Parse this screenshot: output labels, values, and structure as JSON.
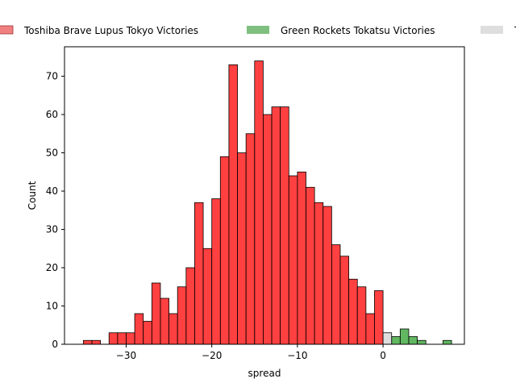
{
  "chart_data": {
    "type": "bar",
    "subtype": "histogram",
    "xlabel": "spread",
    "ylabel": "Count",
    "xlim": [
      -37.2,
      9.5
    ],
    "ylim": [
      0,
      77.7
    ],
    "xticks": [
      -30,
      -20,
      -10,
      0
    ],
    "xtick_labels": [
      "−30",
      "−20",
      "−10",
      "0"
    ],
    "yticks": [
      0,
      10,
      20,
      30,
      40,
      50,
      60,
      70
    ],
    "ytick_labels": [
      "0",
      "10",
      "20",
      "30",
      "40",
      "50",
      "60",
      "70"
    ],
    "legend_position": "top-center",
    "bin_width": 1,
    "series": [
      {
        "name": "Toshiba Brave Lupus Tokyo Victories",
        "color": "#ff0000",
        "legend_color": "#f08080",
        "bins": [
          {
            "x0": -35,
            "x1": -34,
            "count": 1
          },
          {
            "x0": -34,
            "x1": -33,
            "count": 1
          },
          {
            "x0": -32,
            "x1": -31,
            "count": 3
          },
          {
            "x0": -31,
            "x1": -30,
            "count": 3
          },
          {
            "x0": -30,
            "x1": -29,
            "count": 3
          },
          {
            "x0": -29,
            "x1": -28,
            "count": 8
          },
          {
            "x0": -28,
            "x1": -27,
            "count": 6
          },
          {
            "x0": -27,
            "x1": -26,
            "count": 16
          },
          {
            "x0": -26,
            "x1": -25,
            "count": 12
          },
          {
            "x0": -25,
            "x1": -24,
            "count": 8
          },
          {
            "x0": -24,
            "x1": -23,
            "count": 15
          },
          {
            "x0": -23,
            "x1": -22,
            "count": 20
          },
          {
            "x0": -22,
            "x1": -21,
            "count": 37
          },
          {
            "x0": -21,
            "x1": -20,
            "count": 25
          },
          {
            "x0": -20,
            "x1": -19,
            "count": 38
          },
          {
            "x0": -19,
            "x1": -18,
            "count": 49
          },
          {
            "x0": -18,
            "x1": -17,
            "count": 73
          },
          {
            "x0": -17,
            "x1": -16,
            "count": 50
          },
          {
            "x0": -16,
            "x1": -15,
            "count": 55
          },
          {
            "x0": -15,
            "x1": -14,
            "count": 74
          },
          {
            "x0": -14,
            "x1": -13,
            "count": 60
          },
          {
            "x0": -13,
            "x1": -12,
            "count": 62
          },
          {
            "x0": -12,
            "x1": -11,
            "count": 62
          },
          {
            "x0": -11,
            "x1": -10,
            "count": 44
          },
          {
            "x0": -10,
            "x1": -9,
            "count": 45
          },
          {
            "x0": -9,
            "x1": -8,
            "count": 41
          },
          {
            "x0": -8,
            "x1": -7,
            "count": 37
          },
          {
            "x0": -7,
            "x1": -6,
            "count": 36
          },
          {
            "x0": -6,
            "x1": -5,
            "count": 26
          },
          {
            "x0": -5,
            "x1": -4,
            "count": 23
          },
          {
            "x0": -4,
            "x1": -3,
            "count": 17
          },
          {
            "x0": -3,
            "x1": -2,
            "count": 15
          },
          {
            "x0": -2,
            "x1": -1,
            "count": 8
          },
          {
            "x0": -1,
            "x1": 0,
            "count": 14
          }
        ]
      },
      {
        "name": "Green Rockets Tokatsu Victories",
        "color": "#2ca02c",
        "legend_color": "#7fbf7f",
        "bins": [
          {
            "x0": 1,
            "x1": 2,
            "count": 2
          },
          {
            "x0": 2,
            "x1": 3,
            "count": 4
          },
          {
            "x0": 3,
            "x1": 4,
            "count": 2
          },
          {
            "x0": 4,
            "x1": 5,
            "count": 1
          },
          {
            "x0": 7,
            "x1": 8,
            "count": 1
          }
        ]
      },
      {
        "name": "T",
        "color": "#d3d3d3",
        "legend_color": "#dedede",
        "bins": [
          {
            "x0": 0,
            "x1": 1,
            "count": 3
          }
        ]
      }
    ]
  }
}
